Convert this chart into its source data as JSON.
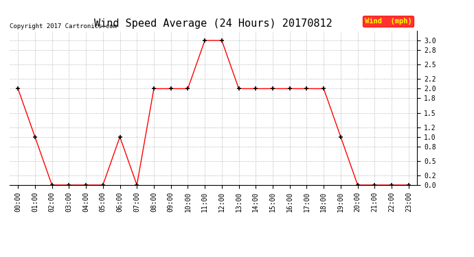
{
  "title": "Wind Speed Average (24 Hours) 20170812",
  "copyright_text": "Copyright 2017 Cartronics.com",
  "legend_label": "Wind  (mph)",
  "x_labels": [
    "00:00",
    "01:00",
    "02:00",
    "03:00",
    "04:00",
    "05:00",
    "06:00",
    "07:00",
    "08:00",
    "09:00",
    "10:00",
    "11:00",
    "12:00",
    "13:00",
    "14:00",
    "15:00",
    "16:00",
    "17:00",
    "18:00",
    "19:00",
    "20:00",
    "21:00",
    "22:00",
    "23:00"
  ],
  "y_values": [
    2.0,
    1.0,
    0.0,
    0.0,
    0.0,
    0.0,
    1.0,
    0.0,
    2.0,
    2.0,
    2.0,
    3.0,
    3.0,
    2.0,
    2.0,
    2.0,
    2.0,
    2.0,
    2.0,
    1.0,
    0.0,
    0.0,
    0.0,
    0.0
  ],
  "line_color": "#ff0000",
  "marker": "+",
  "marker_color": "#000000",
  "ylim": [
    0.0,
    3.2
  ],
  "yticks": [
    0.0,
    0.2,
    0.5,
    0.8,
    1.0,
    1.2,
    1.5,
    1.8,
    2.0,
    2.2,
    2.5,
    2.8,
    3.0
  ],
  "grid_color": "#bbbbbb",
  "bg_color": "#ffffff",
  "title_fontsize": 11,
  "tick_fontsize": 7,
  "legend_bg": "#ff0000",
  "legend_text_color": "#ffff00",
  "fig_width": 6.9,
  "fig_height": 3.75,
  "dpi": 100
}
